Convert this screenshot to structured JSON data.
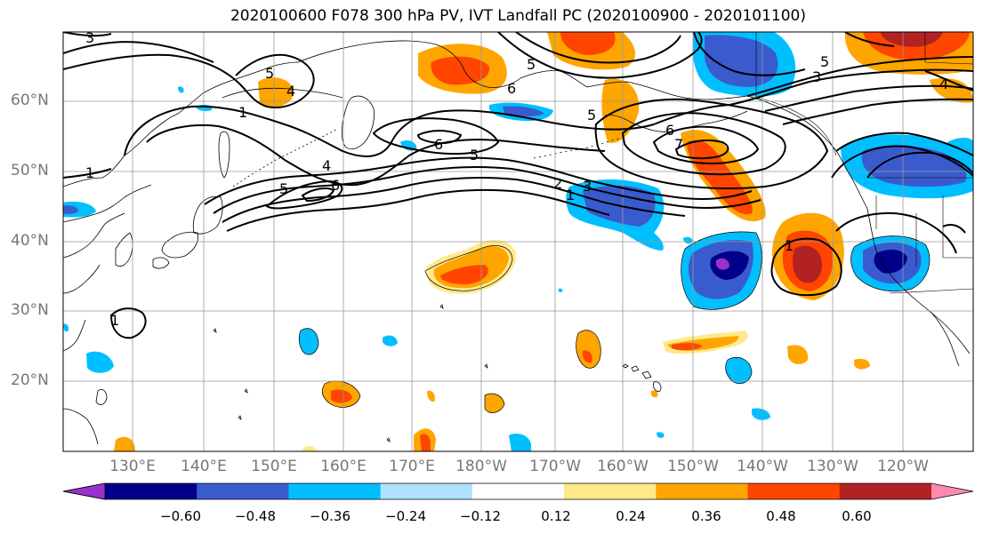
{
  "title": "2020100600 F078 300 hPa PV, IVT Landfall PC (2020100900 - 2020101100)",
  "lat_labels": [
    "60°N",
    "50°N",
    "40°N",
    "30°N",
    "20°N"
  ],
  "lon_labels": [
    "130°E",
    "140°E",
    "150°E",
    "160°E",
    "170°E",
    "180°W",
    "170°W",
    "160°W",
    "150°W",
    "140°W",
    "130°W",
    "120°W"
  ],
  "contour_labels": [
    "3",
    "5",
    "4",
    "1",
    "5",
    "6",
    "6",
    "5",
    "1",
    "4",
    "5",
    "6",
    "5",
    "2",
    "3",
    "1",
    "6",
    "7",
    "3",
    "5",
    "4",
    "1",
    "1"
  ],
  "colorbar": {
    "ticks": [
      "−0.60",
      "−0.48",
      "−0.36",
      "−0.24",
      "−0.12",
      "0.12",
      "0.24",
      "0.36",
      "0.48",
      "0.60"
    ],
    "colors": [
      "#9932CC",
      "#00008B",
      "#3A5BCD",
      "#00BFFF",
      "#B0E2FF",
      "#FFFFFF",
      "#FFE98A",
      "#FFA500",
      "#FF4500",
      "#B22222",
      "#FF89B0"
    ]
  }
}
